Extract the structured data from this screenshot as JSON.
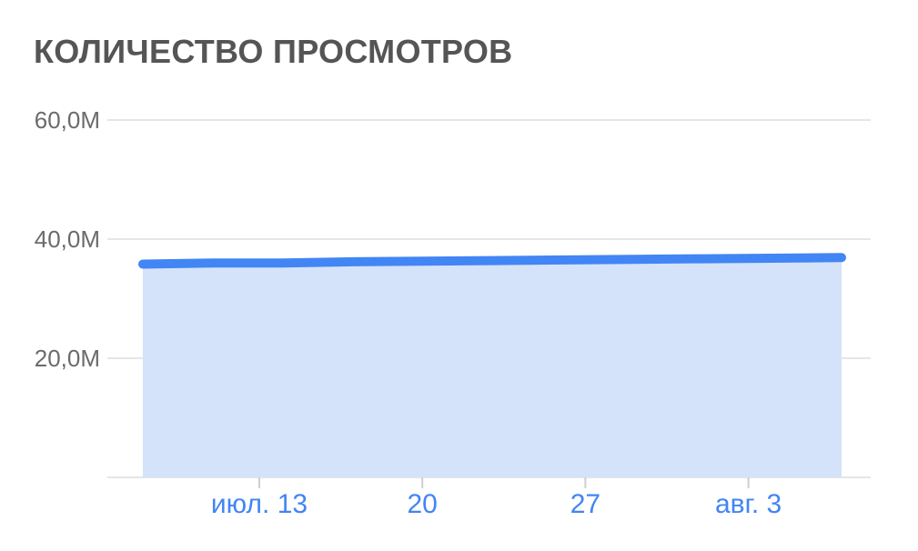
{
  "chart_data": {
    "type": "area",
    "title": "КОЛИЧЕСТВО ПРОСМОТРОВ",
    "xlabel": "",
    "ylabel": "",
    "ylim": [
      0,
      60
    ],
    "yticks": [
      {
        "value": 20,
        "label": "20,0M"
      },
      {
        "value": 40,
        "label": "40,0M"
      },
      {
        "value": 60,
        "label": "60,0M"
      }
    ],
    "xlim": [
      "2024-07-08",
      "2024-08-07"
    ],
    "xticks": [
      {
        "x": "2024-07-13",
        "label": "июл. 13"
      },
      {
        "x": "2024-07-20",
        "label": "20"
      },
      {
        "x": "2024-07-27",
        "label": "27"
      },
      {
        "x": "2024-08-03",
        "label": "авг. 3"
      }
    ],
    "grid": true,
    "series": [
      {
        "x": [
          "2024-07-08",
          "2024-07-11",
          "2024-07-14",
          "2024-07-17",
          "2024-07-20",
          "2024-07-23",
          "2024-07-26",
          "2024-07-29",
          "2024-08-01",
          "2024-08-04",
          "2024-08-07"
        ],
        "values": [
          35.8,
          36.0,
          36.0,
          36.2,
          36.3,
          36.4,
          36.5,
          36.6,
          36.7,
          36.8,
          36.9
        ]
      }
    ],
    "colors": {
      "line": "#4285f4",
      "fill": "#d4e3fa",
      "grid": "#e6e6e6",
      "xtick": "#4285f4",
      "ytick": "#6b6b6b"
    }
  }
}
